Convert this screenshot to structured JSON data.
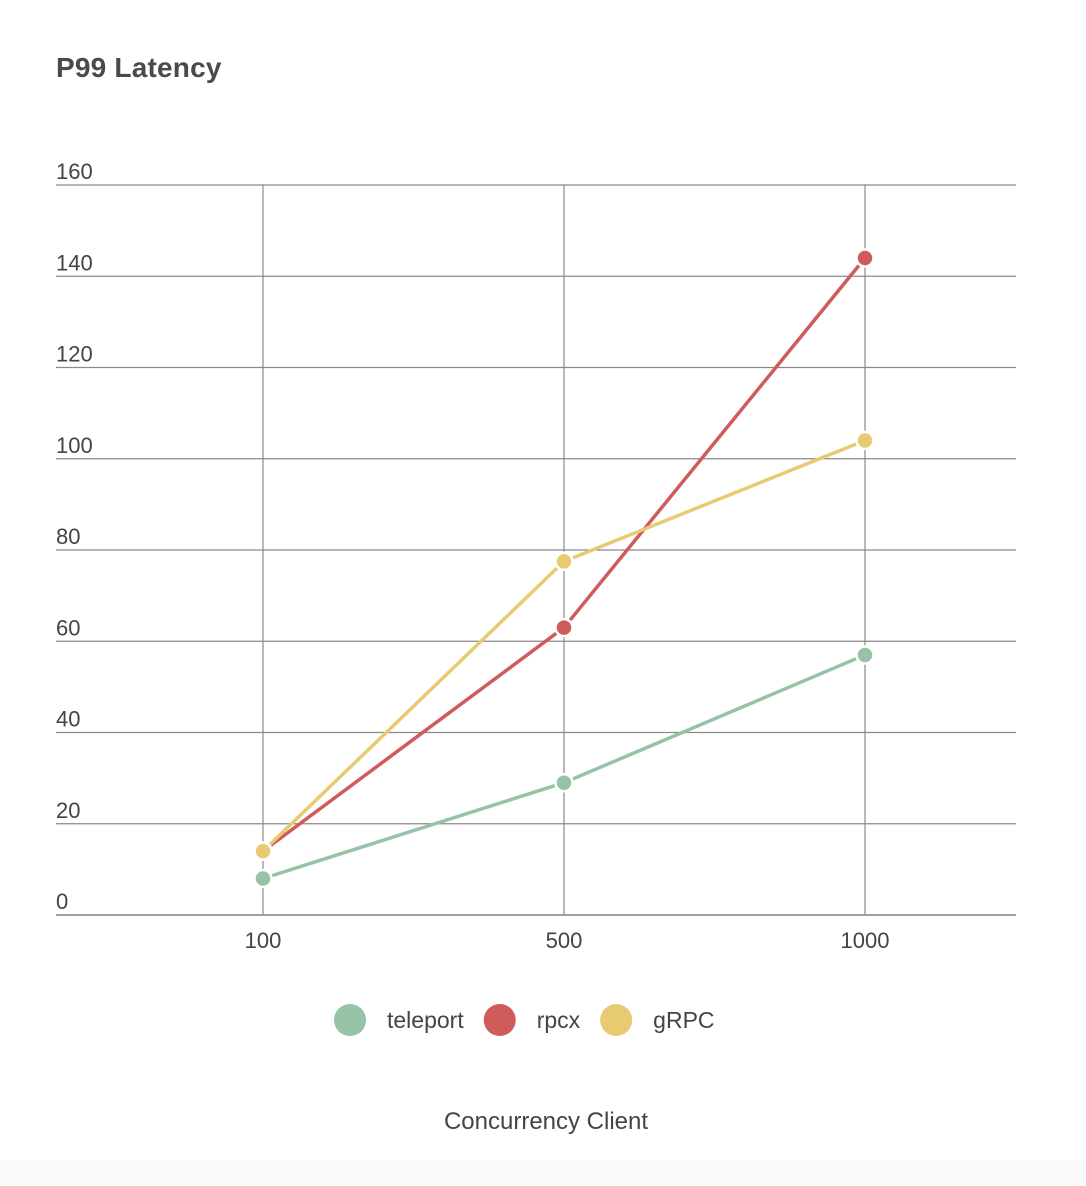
{
  "chart_data": {
    "type": "line",
    "title": "P99 Latency",
    "xlabel": "Concurrency Client",
    "ylabel": "",
    "categories": [
      "100",
      "500",
      "1000"
    ],
    "ylim": [
      0,
      160
    ],
    "yticks": [
      0,
      20,
      40,
      60,
      80,
      100,
      120,
      140,
      160
    ],
    "grid": true,
    "legend_position": "bottom",
    "series": [
      {
        "name": "teleport",
        "color": "#96c2a6",
        "values": [
          8,
          29,
          57
        ]
      },
      {
        "name": "rpcx",
        "color": "#cf5b5b",
        "values": [
          14,
          63,
          144
        ]
      },
      {
        "name": "gRPC",
        "color": "#e8ca72",
        "values": [
          14,
          77.5,
          104
        ]
      }
    ]
  }
}
